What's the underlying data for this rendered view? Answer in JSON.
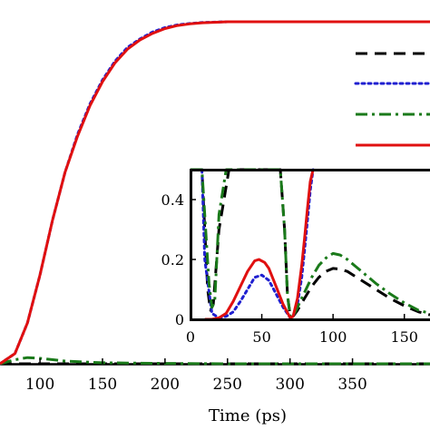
{
  "chart_data": [
    {
      "type": "line",
      "panel": "main",
      "xlabel": "Time (ps)",
      "x_ticks": [
        "100",
        "150",
        "200",
        "250",
        "300",
        "350"
      ],
      "xlim": [
        68,
        412
      ],
      "ylim": [
        0,
        1
      ],
      "series": [
        {
          "style": "dashed",
          "color": "#000000",
          "x": [
            68,
            100,
            150,
            200,
            250,
            300,
            350,
            412
          ],
          "y": [
            0.0,
            0.0,
            0.0,
            0.0,
            0.0,
            0.0,
            0.0,
            0.0
          ]
        },
        {
          "style": "dotted",
          "color": "#1f1fd0",
          "x": [
            68,
            80,
            90,
            100,
            110,
            120,
            130,
            140,
            150,
            160,
            170,
            180,
            190,
            200,
            210,
            220,
            230,
            250,
            300,
            350,
            412
          ],
          "y": [
            0.0,
            0.03,
            0.12,
            0.26,
            0.42,
            0.56,
            0.67,
            0.76,
            0.83,
            0.885,
            0.925,
            0.95,
            0.97,
            0.983,
            0.991,
            0.995,
            0.998,
            1.0,
            1.0,
            1.0,
            1.0
          ]
        },
        {
          "style": "dash-dot",
          "color": "#1a7a1a",
          "x": [
            68,
            80,
            90,
            100,
            120,
            150,
            200,
            250,
            300,
            350,
            412
          ],
          "y": [
            0.0,
            0.012,
            0.018,
            0.016,
            0.008,
            0.003,
            0.001,
            0.0,
            0.0,
            0.0,
            0.0
          ]
        },
        {
          "style": "solid",
          "color": "#e01010",
          "x": [
            68,
            80,
            90,
            100,
            110,
            120,
            130,
            140,
            150,
            160,
            170,
            180,
            190,
            200,
            210,
            220,
            230,
            250,
            300,
            350,
            412
          ],
          "y": [
            0.0,
            0.03,
            0.12,
            0.26,
            0.42,
            0.56,
            0.665,
            0.755,
            0.825,
            0.88,
            0.92,
            0.947,
            0.966,
            0.98,
            0.989,
            0.994,
            0.997,
            1.0,
            1.0,
            1.0,
            1.0
          ]
        }
      ]
    },
    {
      "type": "line",
      "panel": "inset",
      "x_ticks": [
        "0",
        "50",
        "100",
        "150"
      ],
      "y_ticks": [
        "0",
        "0.2",
        "0.4"
      ],
      "xlim": [
        0,
        168
      ],
      "ylim": [
        0,
        0.5
      ],
      "series": [
        {
          "style": "dashed",
          "color": "#000000",
          "x": [
            0,
            5,
            8,
            10,
            12,
            14,
            16,
            20,
            27,
            30,
            35,
            45,
            50,
            55,
            60,
            63,
            66,
            68,
            70,
            72,
            75,
            80,
            85,
            90,
            95,
            100,
            105,
            110,
            115,
            120,
            130,
            140,
            150,
            160,
            168
          ],
          "y": [
            0.5,
            0.5,
            0.5,
            0.3,
            0.1,
            0.03,
            0.05,
            0.3,
            0.5,
            0.5,
            0.5,
            0.5,
            0.5,
            0.5,
            0.5,
            0.5,
            0.3,
            0.08,
            0.01,
            0.01,
            0.03,
            0.07,
            0.11,
            0.14,
            0.16,
            0.17,
            0.168,
            0.16,
            0.145,
            0.13,
            0.1,
            0.07,
            0.045,
            0.025,
            0.015
          ]
        },
        {
          "style": "dotted",
          "color": "#1f1fd0",
          "x": [
            8,
            10,
            15,
            20,
            25,
            30,
            35,
            40,
            45,
            50,
            55,
            60,
            65,
            70,
            72,
            75,
            78,
            80,
            82,
            84,
            86
          ],
          "y": [
            0.5,
            0.2,
            0.02,
            0.005,
            0.01,
            0.025,
            0.06,
            0.1,
            0.14,
            0.148,
            0.13,
            0.085,
            0.04,
            0.005,
            0.01,
            0.05,
            0.14,
            0.23,
            0.33,
            0.43,
            0.5
          ]
        },
        {
          "style": "dash-dot",
          "color": "#1a7a1a",
          "x": [
            0,
            5,
            8,
            10,
            13,
            15,
            17,
            20,
            25,
            30,
            35,
            45,
            50,
            55,
            60,
            63,
            66,
            68,
            70,
            72,
            75,
            80,
            85,
            90,
            95,
            100,
            105,
            110,
            115,
            120,
            130,
            140,
            150,
            160,
            168
          ],
          "y": [
            0.5,
            0.5,
            0.5,
            0.35,
            0.12,
            0.04,
            0.06,
            0.35,
            0.5,
            0.5,
            0.5,
            0.5,
            0.5,
            0.5,
            0.5,
            0.5,
            0.3,
            0.08,
            0.01,
            0.01,
            0.04,
            0.09,
            0.14,
            0.18,
            0.205,
            0.22,
            0.215,
            0.2,
            0.18,
            0.16,
            0.12,
            0.085,
            0.055,
            0.03,
            0.02
          ]
        },
        {
          "style": "solid",
          "color": "#e01010",
          "x": [
            10,
            15,
            20,
            25,
            30,
            35,
            40,
            45,
            48,
            52,
            55,
            60,
            65,
            70,
            72,
            75,
            78,
            80,
            82,
            84,
            86
          ],
          "y": [
            0.0,
            0.0,
            0.005,
            0.02,
            0.06,
            0.11,
            0.16,
            0.195,
            0.2,
            0.19,
            0.17,
            0.11,
            0.05,
            0.005,
            0.01,
            0.07,
            0.18,
            0.27,
            0.37,
            0.46,
            0.5
          ]
        }
      ]
    }
  ]
}
